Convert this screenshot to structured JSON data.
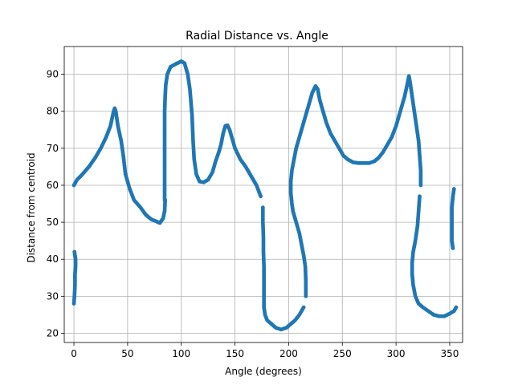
{
  "chart_data": {
    "type": "scatter",
    "title": "Radial Distance vs. Angle",
    "xlabel": "Angle (degrees)",
    "ylabel": "Distance from centroid",
    "xlim": [
      -9,
      362
    ],
    "ylim": [
      17.5,
      97.5
    ],
    "xticks": [
      0,
      50,
      100,
      150,
      200,
      250,
      300,
      350
    ],
    "yticks": [
      20,
      30,
      40,
      50,
      60,
      70,
      80,
      90
    ],
    "grid": true,
    "color": "#1f77b4",
    "segments": [
      [
        [
          0,
          28
        ],
        [
          0.5,
          30
        ],
        [
          1,
          33
        ],
        [
          1,
          36
        ],
        [
          1.5,
          38
        ],
        [
          1.5,
          40
        ],
        [
          1,
          41
        ],
        [
          0.5,
          42
        ]
      ],
      [
        [
          0,
          60
        ],
        [
          3,
          61.5
        ],
        [
          8,
          63
        ],
        [
          14,
          65
        ],
        [
          20,
          67.5
        ],
        [
          25,
          70
        ],
        [
          30,
          73
        ],
        [
          34,
          76
        ],
        [
          37,
          80
        ],
        [
          38,
          80.8
        ],
        [
          39,
          80
        ],
        [
          41,
          76
        ],
        [
          44,
          72
        ],
        [
          46,
          68
        ],
        [
          48,
          63
        ],
        [
          52,
          59
        ],
        [
          56,
          56
        ],
        [
          62,
          54
        ],
        [
          67,
          52
        ],
        [
          72,
          50.8
        ],
        [
          77,
          50.2
        ],
        [
          80,
          49.8
        ],
        [
          83,
          51
        ],
        [
          84.5,
          53
        ],
        [
          85,
          56
        ]
      ],
      [
        [
          84.5,
          56
        ],
        [
          84.5,
          60
        ],
        [
          84.5,
          64
        ],
        [
          84.5,
          68
        ],
        [
          84.5,
          72
        ],
        [
          84.5,
          76
        ],
        [
          84.5,
          80
        ],
        [
          85,
          84
        ],
        [
          85.5,
          87
        ],
        [
          87,
          90
        ],
        [
          90,
          92
        ],
        [
          95,
          92.8
        ],
        [
          100,
          93.5
        ],
        [
          103,
          93
        ],
        [
          106,
          90
        ],
        [
          108,
          86
        ],
        [
          110,
          79
        ],
        [
          111,
          72
        ],
        [
          112,
          67
        ],
        [
          114,
          63
        ],
        [
          117,
          61
        ],
        [
          121,
          60.8
        ],
        [
          125,
          61.5
        ],
        [
          129,
          63.5
        ],
        [
          132,
          66.5
        ],
        [
          135,
          69
        ],
        [
          137,
          71
        ],
        [
          139,
          74
        ],
        [
          141,
          76
        ],
        [
          143,
          76.2
        ],
        [
          145,
          75
        ],
        [
          147,
          73
        ],
        [
          150,
          70
        ],
        [
          155,
          67
        ],
        [
          160,
          65
        ],
        [
          165,
          62.5
        ],
        [
          170,
          60
        ],
        [
          174,
          57
        ]
      ],
      [
        [
          176,
          54
        ],
        [
          176,
          50
        ],
        [
          176.5,
          46
        ],
        [
          176.5,
          42
        ],
        [
          177,
          38
        ],
        [
          177,
          34
        ],
        [
          177,
          30
        ],
        [
          177,
          27
        ],
        [
          178,
          25
        ],
        [
          180,
          23.5
        ],
        [
          184,
          22.5
        ],
        [
          188,
          21.5
        ],
        [
          193,
          21
        ],
        [
          198,
          21.5
        ],
        [
          202,
          22.5
        ],
        [
          206,
          23.5
        ],
        [
          210,
          25
        ],
        [
          214,
          27
        ]
      ],
      [
        [
          216,
          30
        ],
        [
          216,
          34
        ],
        [
          215.5,
          38
        ],
        [
          214,
          41
        ],
        [
          212,
          44
        ],
        [
          210,
          47
        ],
        [
          208,
          49
        ],
        [
          206,
          51
        ],
        [
          204,
          53
        ],
        [
          203,
          55
        ],
        [
          202,
          58
        ],
        [
          202,
          61
        ],
        [
          203,
          64
        ],
        [
          205,
          67
        ],
        [
          207,
          70
        ],
        [
          210,
          73
        ],
        [
          213,
          76
        ],
        [
          216,
          79
        ],
        [
          219,
          82
        ],
        [
          222,
          85
        ],
        [
          225,
          86.8
        ],
        [
          227,
          86
        ],
        [
          229,
          83
        ],
        [
          232,
          80
        ],
        [
          235,
          77
        ],
        [
          239,
          74
        ],
        [
          243,
          72
        ],
        [
          247,
          70
        ],
        [
          251,
          68
        ],
        [
          255,
          67
        ],
        [
          260,
          66.2
        ],
        [
          265,
          66
        ],
        [
          270,
          66
        ],
        [
          275,
          66
        ],
        [
          280,
          66.5
        ],
        [
          284,
          67.5
        ],
        [
          288,
          69
        ],
        [
          292,
          71
        ],
        [
          296,
          73
        ],
        [
          300,
          76
        ],
        [
          304,
          80
        ],
        [
          308,
          84
        ],
        [
          311,
          88
        ],
        [
          312,
          89.5
        ],
        [
          313,
          88
        ],
        [
          315,
          84
        ],
        [
          317,
          80
        ],
        [
          319,
          76
        ],
        [
          321,
          72
        ],
        [
          322,
          68
        ],
        [
          323,
          64
        ],
        [
          323,
          60
        ]
      ],
      [
        [
          322,
          57
        ],
        [
          321,
          53
        ],
        [
          320,
          49
        ],
        [
          318,
          45
        ],
        [
          316,
          42
        ],
        [
          315,
          39
        ],
        [
          315,
          36
        ],
        [
          316,
          33
        ],
        [
          318,
          30
        ],
        [
          321,
          28
        ],
        [
          325,
          27
        ],
        [
          330,
          26
        ],
        [
          335,
          25
        ],
        [
          340,
          24.6
        ],
        [
          345,
          24.6
        ],
        [
          350,
          25.3
        ],
        [
          354,
          26
        ],
        [
          356,
          27
        ]
      ],
      [
        [
          353,
          43
        ],
        [
          352,
          45
        ],
        [
          352,
          48
        ],
        [
          352,
          51
        ],
        [
          352,
          54
        ],
        [
          353,
          57
        ],
        [
          354,
          59
        ]
      ]
    ]
  }
}
